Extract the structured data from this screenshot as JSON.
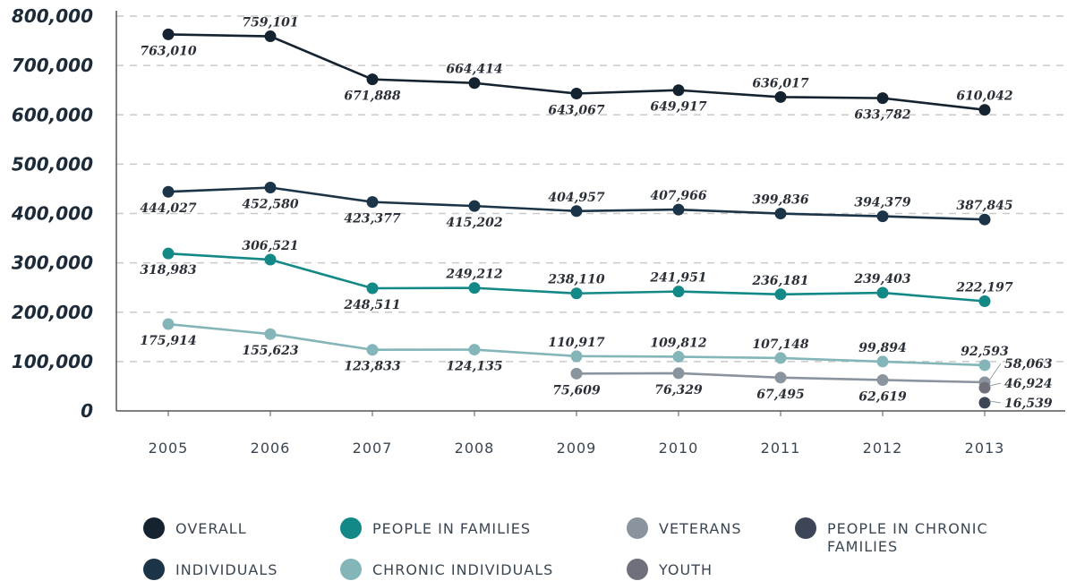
{
  "chart_data": {
    "type": "line",
    "categories": [
      "2005",
      "2006",
      "2007",
      "2008",
      "2009",
      "2010",
      "2011",
      "2012",
      "2013"
    ],
    "ylim": [
      0,
      800000
    ],
    "yticks": [
      0,
      100000,
      200000,
      300000,
      400000,
      500000,
      600000,
      700000,
      800000
    ],
    "ytick_labels": [
      "0",
      "100,000",
      "200,000",
      "300,000",
      "400,000",
      "500,000",
      "600,000",
      "700,000",
      "800,000"
    ],
    "grid": "horizontal dashed",
    "legend_position": "bottom",
    "series": [
      {
        "name": "OVERALL",
        "color": "#15222f",
        "values": [
          763010,
          759101,
          671888,
          664414,
          643067,
          649917,
          636017,
          633782,
          610042
        ],
        "labels": [
          "763,010",
          "759,101",
          "671,888",
          "664,414",
          "643,067",
          "649,917",
          "636,017",
          "633,782",
          "610,042"
        ]
      },
      {
        "name": "INDIVIDUALS",
        "color": "#1b3447",
        "values": [
          444027,
          452580,
          423377,
          415202,
          404957,
          407966,
          399836,
          394379,
          387845
        ],
        "labels": [
          "444,027",
          "452,580",
          "423,377",
          "415,202",
          "404,957",
          "407,966",
          "399,836",
          "394,379",
          "387,845"
        ]
      },
      {
        "name": "PEOPLE IN FAMILIES",
        "color": "#138987",
        "values": [
          318983,
          306521,
          248511,
          249212,
          238110,
          241951,
          236181,
          239403,
          222197
        ],
        "labels": [
          "318,983",
          "306,521",
          "248,511",
          "249,212",
          "238,110",
          "241,951",
          "236,181",
          "239,403",
          "222,197"
        ]
      },
      {
        "name": "CHRONIC INDIVIDUALS",
        "color": "#84b5b9",
        "values": [
          175914,
          155623,
          123833,
          124135,
          110917,
          109812,
          107148,
          99894,
          92593
        ],
        "labels": [
          "175,914",
          "155,623",
          "123,833",
          "124,135",
          "110,917",
          "109,812",
          "107,148",
          "99,894",
          "92,593"
        ]
      },
      {
        "name": "VETERANS",
        "color": "#8a949e",
        "values": [
          null,
          null,
          null,
          null,
          75609,
          76329,
          67495,
          62619,
          58063
        ],
        "labels": [
          "",
          "",
          "",
          "",
          "75,609",
          "76,329",
          "67,495",
          "62,619",
          "58,063"
        ]
      },
      {
        "name": "YOUTH",
        "color": "#70707c",
        "values": [
          null,
          null,
          null,
          null,
          null,
          null,
          null,
          null,
          46924
        ],
        "labels": [
          "",
          "",
          "",
          "",
          "",
          "",
          "",
          "",
          "46,924"
        ]
      },
      {
        "name": "PEOPLE IN CHRONIC FAMILIES",
        "color": "#3d4656",
        "values": [
          null,
          null,
          null,
          null,
          null,
          null,
          null,
          null,
          16539
        ],
        "labels": [
          "",
          "",
          "",
          "",
          "",
          "",
          "",
          "",
          "16,539"
        ]
      }
    ]
  },
  "legend": {
    "items": [
      {
        "label": "OVERALL",
        "color": "#15222f"
      },
      {
        "label": "PEOPLE IN FAMILIES",
        "color": "#138987"
      },
      {
        "label": "VETERANS",
        "color": "#8a949e"
      },
      {
        "label": "PEOPLE IN CHRONIC FAMILIES",
        "color": "#3d4656"
      },
      {
        "label": "INDIVIDUALS",
        "color": "#1b3447"
      },
      {
        "label": "CHRONIC INDIVIDUALS",
        "color": "#84b5b9"
      },
      {
        "label": "YOUTH",
        "color": "#70707c"
      }
    ]
  }
}
